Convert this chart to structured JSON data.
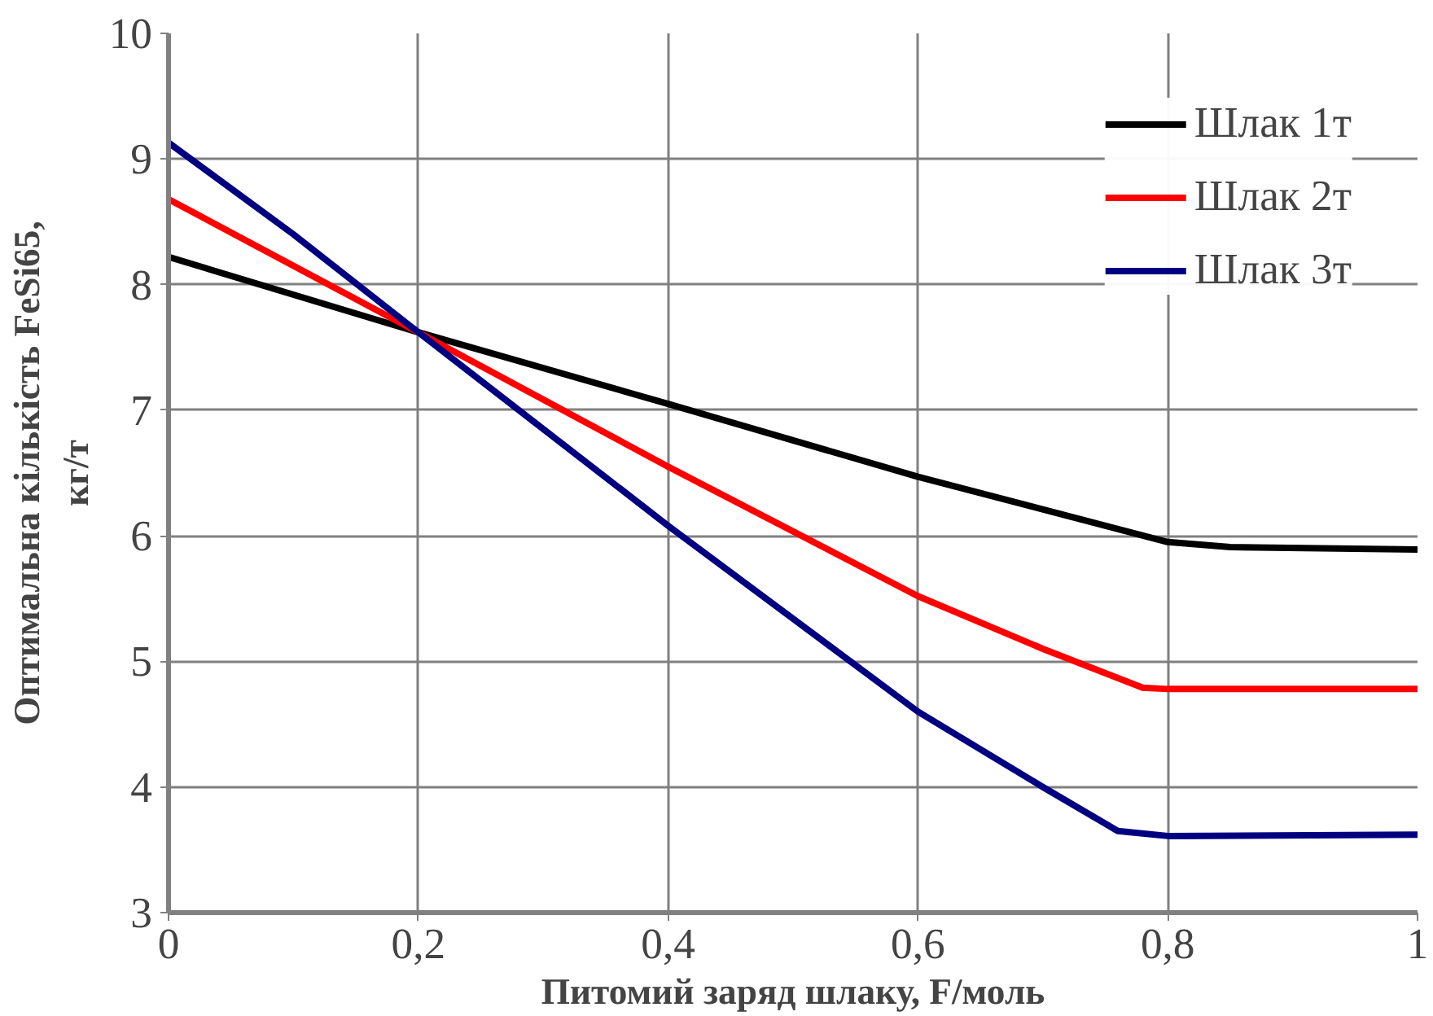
{
  "chart_data": {
    "type": "line",
    "xlabel": "Питомий заряд шлаку, F/моль",
    "ylabel": "Оптимальна кількість FeSi65,\nкг/т",
    "xlim": [
      0,
      1
    ],
    "ylim": [
      3,
      10
    ],
    "xticks": [
      0,
      {
        "value": 0.2,
        "label": "0,2"
      },
      {
        "value": 0.4,
        "label": "0,4"
      },
      {
        "value": 0.6,
        "label": "0,6"
      },
      {
        "value": 0.8,
        "label": "0,8"
      },
      1
    ],
    "yticks": [
      3,
      4,
      5,
      6,
      7,
      8,
      9,
      10
    ],
    "grid": true,
    "legend": "top right",
    "line_style": "solid",
    "marker": "none",
    "series": [
      {
        "name": "Шлак 1т",
        "color": "#000000",
        "x": [
          0,
          0.2,
          0.4,
          0.6,
          0.8,
          0.85,
          1
        ],
        "values": [
          8.22,
          7.62,
          7.05,
          6.47,
          5.95,
          5.91,
          5.89
        ]
      },
      {
        "name": "Шлак 2т",
        "color": "#ff0000",
        "x": [
          0,
          0.2,
          0.4,
          0.6,
          0.7,
          0.78,
          0.8,
          1
        ],
        "values": [
          8.68,
          7.62,
          6.55,
          5.52,
          5.1,
          4.79,
          4.78,
          4.78
        ]
      },
      {
        "name": "Шлак 3т",
        "color": "#000080",
        "x": [
          0,
          0.1,
          0.2,
          0.4,
          0.6,
          0.7,
          0.76,
          0.8,
          1
        ],
        "values": [
          9.13,
          8.4,
          7.62,
          6.08,
          4.6,
          4.0,
          3.65,
          3.61,
          3.62
        ]
      }
    ]
  }
}
